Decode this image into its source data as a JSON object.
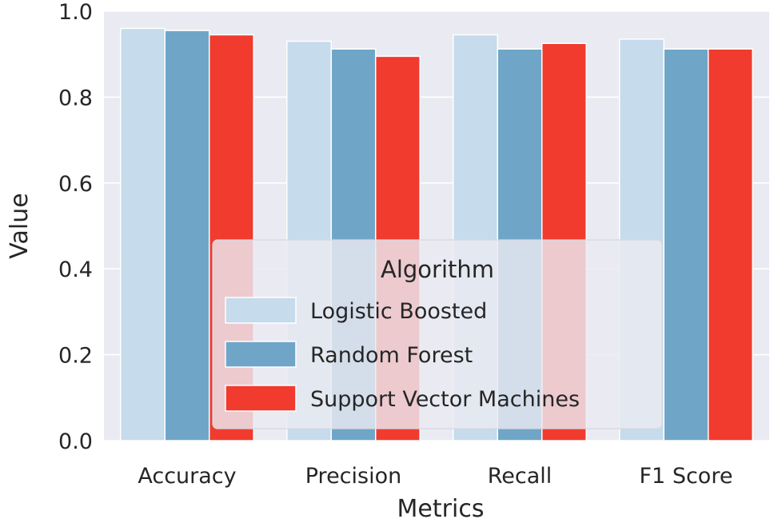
{
  "chart_data": {
    "type": "bar",
    "xlabel": "Metrics",
    "ylabel": "Value",
    "ylim": [
      0,
      1.0
    ],
    "yticks": [
      "0.0",
      "0.2",
      "0.4",
      "0.6",
      "0.8",
      "1.0"
    ],
    "grid": true,
    "categories": [
      "Accuracy",
      "Precision",
      "Recall",
      "F1 Score"
    ],
    "series": [
      {
        "name": "Logistic Boosted",
        "color": "#c6dbeb",
        "values": [
          0.96,
          0.93,
          0.945,
          0.935
        ]
      },
      {
        "name": "Random Forest",
        "color": "#6fa6c8",
        "values": [
          0.955,
          0.912,
          0.912,
          0.912
        ]
      },
      {
        "name": "Support Vector Machines",
        "color": "#f03b2e",
        "values": [
          0.945,
          0.895,
          0.925,
          0.912
        ]
      }
    ],
    "legend": {
      "title": "Algorithm",
      "position": "lower-right"
    }
  },
  "colors": {
    "plot_background": "#eaeaf2",
    "grid": "#ffffff",
    "text": "#262626"
  }
}
